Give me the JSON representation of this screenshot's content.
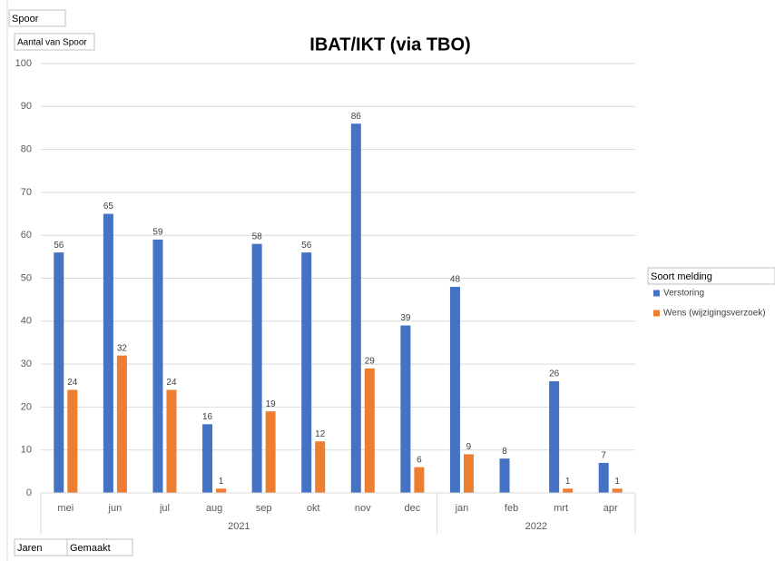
{
  "chart_data": {
    "type": "bar",
    "title": "IBAT/IKT (via TBO)",
    "field_buttons": {
      "filter": "Spoor",
      "value": "Aantal van Spoor",
      "legend": "Soort melding",
      "axis": [
        "Jaren",
        "Gemaakt"
      ]
    },
    "categories": [
      "mei",
      "jun",
      "jul",
      "aug",
      "sep",
      "okt",
      "nov",
      "dec",
      "jan",
      "feb",
      "mrt",
      "apr"
    ],
    "groups": [
      {
        "name": "2021",
        "count": 8
      },
      {
        "name": "2022",
        "count": 4
      }
    ],
    "series": [
      {
        "name": "Verstoring",
        "color": "#4472c4",
        "values": [
          56,
          65,
          59,
          16,
          58,
          56,
          86,
          39,
          48,
          8,
          26,
          7
        ]
      },
      {
        "name": "Wens (wijzigingsverzoek)",
        "color": "#ed7d31",
        "values": [
          24,
          32,
          24,
          1,
          19,
          12,
          29,
          6,
          9,
          null,
          1,
          1
        ]
      }
    ],
    "ylim": [
      0,
      100
    ],
    "yticks": [
      0,
      10,
      20,
      30,
      40,
      50,
      60,
      70,
      80,
      90,
      100
    ],
    "grid": true,
    "legend": "right"
  }
}
